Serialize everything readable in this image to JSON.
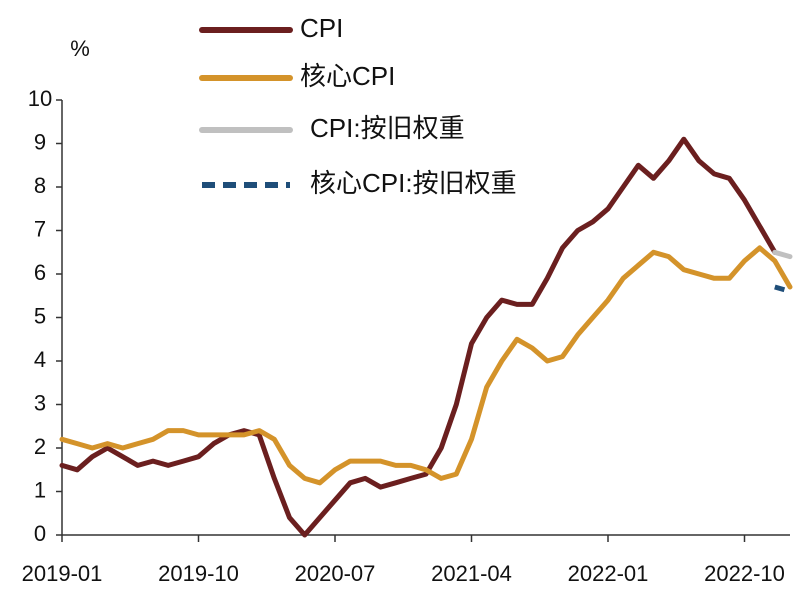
{
  "chart_data": {
    "type": "line",
    "y_label": "%",
    "categories": [
      "2019-01",
      null,
      null,
      null,
      null,
      null,
      null,
      null,
      null,
      "2019-10",
      null,
      null,
      null,
      null,
      null,
      null,
      null,
      null,
      "2020-07",
      null,
      null,
      null,
      null,
      null,
      null,
      null,
      null,
      "2021-04",
      null,
      null,
      null,
      null,
      null,
      null,
      null,
      null,
      "2022-01",
      null,
      null,
      null,
      null,
      null,
      null,
      null,
      null,
      "2022-10",
      null,
      null,
      null
    ],
    "series": [
      {
        "name": "CPI",
        "color": "#6b1f1f",
        "dashed": false,
        "values": [
          1.6,
          1.5,
          1.8,
          2.0,
          1.8,
          1.6,
          1.7,
          1.6,
          1.7,
          1.8,
          2.1,
          2.3,
          2.4,
          2.3,
          1.3,
          0.4,
          0.0,
          0.4,
          0.8,
          1.2,
          1.3,
          1.1,
          1.2,
          1.3,
          1.4,
          2.0,
          3.0,
          4.4,
          5.0,
          5.4,
          5.3,
          5.3,
          5.9,
          6.6,
          7.0,
          7.2,
          7.5,
          8.0,
          8.5,
          8.2,
          8.6,
          9.1,
          8.6,
          8.3,
          8.2,
          7.7,
          7.1,
          6.5,
          null
        ]
      },
      {
        "name": "核心CPI",
        "color": "#d4932a",
        "dashed": false,
        "values": [
          2.2,
          2.1,
          2.0,
          2.1,
          2.0,
          2.1,
          2.2,
          2.4,
          2.4,
          2.3,
          2.3,
          2.3,
          2.3,
          2.4,
          2.2,
          1.6,
          1.3,
          1.2,
          1.5,
          1.7,
          1.7,
          1.7,
          1.6,
          1.6,
          1.5,
          1.3,
          1.4,
          2.2,
          3.4,
          4.0,
          4.5,
          4.3,
          4.0,
          4.1,
          4.6,
          5.0,
          5.4,
          5.9,
          6.2,
          6.5,
          6.4,
          6.1,
          6.0,
          5.9,
          5.9,
          6.3,
          6.6,
          6.3,
          5.7
        ]
      },
      {
        "name": "CPI:按旧权重",
        "color": "#c0c0c0",
        "dashed": false,
        "values": [
          null,
          null,
          null,
          null,
          null,
          null,
          null,
          null,
          null,
          null,
          null,
          null,
          null,
          null,
          null,
          null,
          null,
          null,
          null,
          null,
          null,
          null,
          null,
          null,
          null,
          null,
          null,
          null,
          null,
          null,
          null,
          null,
          null,
          null,
          null,
          null,
          null,
          null,
          null,
          null,
          null,
          null,
          null,
          null,
          null,
          null,
          null,
          6.5,
          6.4
        ]
      },
      {
        "name": "核心CPI:按旧权重",
        "color": "#1f4e79",
        "dashed": true,
        "values": [
          null,
          null,
          null,
          null,
          null,
          null,
          null,
          null,
          null,
          null,
          null,
          null,
          null,
          null,
          null,
          null,
          null,
          null,
          null,
          null,
          null,
          null,
          null,
          null,
          null,
          null,
          null,
          null,
          null,
          null,
          null,
          null,
          null,
          null,
          null,
          null,
          null,
          null,
          null,
          null,
          null,
          null,
          null,
          null,
          null,
          null,
          null,
          5.7,
          5.6
        ]
      }
    ],
    "ylim": [
      0,
      10
    ],
    "yticks": [
      0,
      1,
      2,
      3,
      4,
      5,
      6,
      7,
      8,
      9,
      10
    ],
    "grid": false
  }
}
